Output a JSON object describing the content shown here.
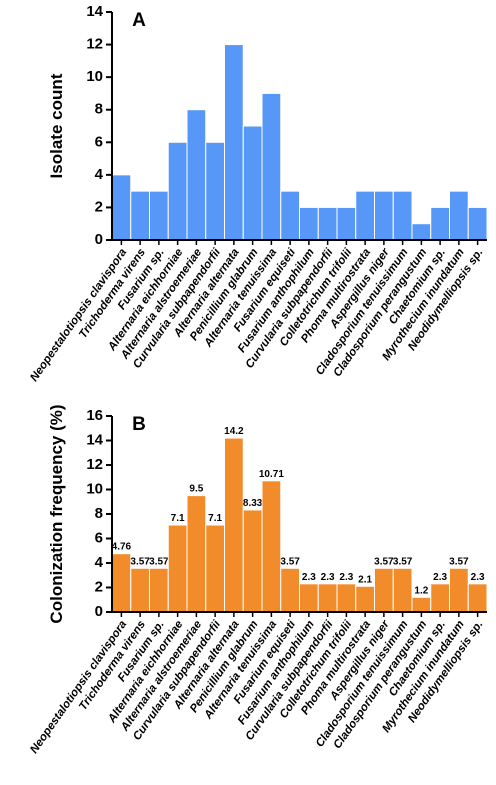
{
  "chart_data": [
    {
      "type": "bar",
      "panel_label": "A",
      "y_label": "Isolate count",
      "color": "#5797f7",
      "data_labels": false,
      "categories": [
        "Neopestalotiopsis clavispora",
        "Trichoderma virens",
        "Fusarium sp.",
        "Alternaria eichhorniae",
        "Alternaria alstroemeriae",
        "Curvularia subpapendorfii",
        "Alternaria alternata",
        "Penicillium glabrum",
        "Alternaria tenuissima",
        "Fusarium equiseti",
        "Fusarium anthophilum",
        "Curvularia subpapendorfii",
        "Colletotrichum trifolii",
        "Phoma multirostrata",
        "Aspergillus niger",
        "Cladosporium tenuissimum",
        "Cladosporium perangustum",
        "Chaetomium sp.",
        "Myrothecium inundatum",
        "Neodidymelliopsis sp."
      ],
      "values": [
        4,
        3,
        3,
        6,
        8,
        6,
        12,
        7,
        9,
        3,
        2,
        2,
        2,
        3,
        3,
        3,
        1,
        2,
        3,
        2
      ],
      "ylim": [
        0,
        14
      ],
      "yticks": [
        0,
        2,
        4,
        6,
        8,
        10,
        12,
        14
      ]
    },
    {
      "type": "bar",
      "panel_label": "B",
      "y_label": "Colonization frequency (%)",
      "color": "#f28c2b",
      "data_labels": true,
      "categories": [
        "Neopestalotiopsis clavispora",
        "Trichoderma virens",
        "Fusarium sp.",
        "Alternaria eichhorniae",
        "Alternaria alstroemeriae",
        "Curvularia subpapendorfii",
        "Alternaria alternata",
        "Penicillium glabrum",
        "Alternaria tenuissima",
        "Fusarium equiseti",
        "Fusarium anthophilum",
        "Curvularia subpapendorfii",
        "Colletotrichum trifolii",
        "Phoma multirostrata",
        "Aspergillus niger",
        "Cladosporium tenuissimum",
        "Cladosporium perangustum",
        "Chaetomium sp.",
        "Myrothecium inundatum",
        "Neodidymelliopsis sp."
      ],
      "values": [
        4.76,
        3.57,
        3.57,
        7.1,
        9.5,
        7.1,
        14.2,
        8.33,
        10.71,
        3.57,
        2.3,
        2.3,
        2.3,
        2.1,
        3.57,
        3.57,
        1.2,
        2.3,
        3.57,
        2.3
      ],
      "ylim": [
        0,
        16
      ],
      "yticks": [
        0,
        2,
        4,
        6,
        8,
        10,
        12,
        14,
        16
      ]
    }
  ]
}
